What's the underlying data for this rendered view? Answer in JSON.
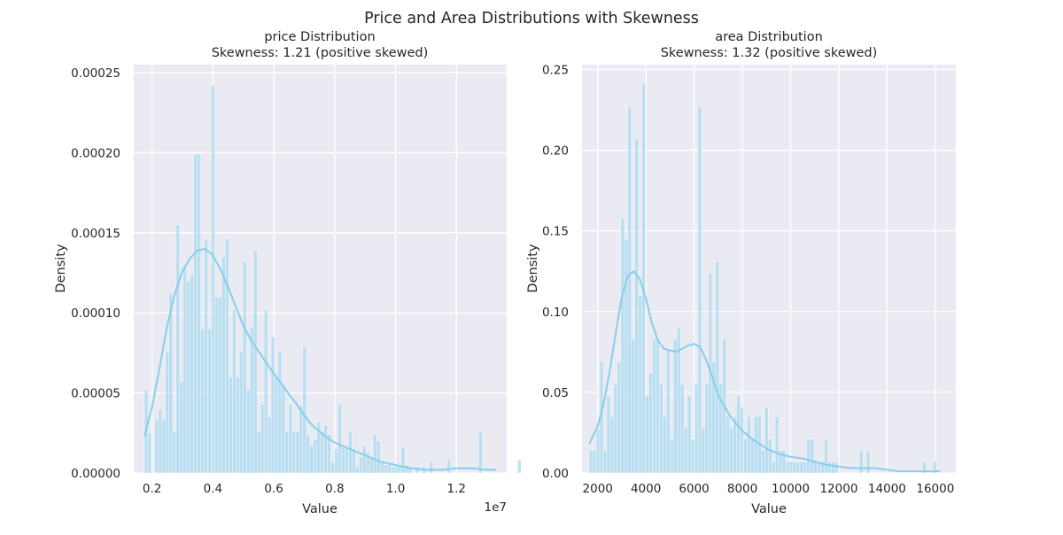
{
  "title": "Price and Area Distributions with Skewness",
  "chart_data": [
    {
      "type": "histogram",
      "title": "price Distribution",
      "subtitle": "Skewness: 1.21 (positive skewed)",
      "xlabel": "Value",
      "ylabel": "Density",
      "x_offset_label": "1e7",
      "xlim": [
        1400000,
        13650000
      ],
      "ylim": [
        0,
        0.000255
      ],
      "xticks": [
        2000000,
        4000000,
        6000000,
        8000000,
        10000000,
        12000000
      ],
      "xtick_labels": [
        "0.2",
        "0.4",
        "0.6",
        "0.8",
        "1.0",
        "1.2"
      ],
      "yticks": [
        0,
        5e-05,
        0.0001,
        0.00015,
        0.0002,
        0.00025
      ],
      "ytick_labels": [
        "0.00000",
        "0.00005",
        "0.00010",
        "0.00015",
        "0.00020",
        "0.00025"
      ],
      "bin_start": 1750000,
      "bin_width": 115600,
      "values": [
        5.2e-05,
        2.5e-05,
        0,
        3.4e-05,
        4e-05,
        3.4e-05,
        7.6e-05,
        0.000112,
        2.6e-05,
        0.000155,
        5.7e-05,
        0.00013,
        0.00012,
        0.000124,
        0.000199,
        0.000199,
        9e-05,
        0.000146,
        9e-05,
        0.000242,
        0.00011,
        0.00011,
        0.000135,
        0.000146,
        6e-05,
        0.000102,
        6e-05,
        7.6e-05,
        0.000132,
        5.2e-05,
        9.1e-05,
        0.000139,
        2.6e-05,
        4.3e-05,
        0.000102,
        3.5e-05,
        8.5e-05,
        6e-05,
        7.6e-05,
        5.5e-05,
        2.6e-05,
        4.3e-05,
        2.6e-05,
        2.6e-05,
        4.2e-05,
        7.9e-05,
        2.4e-05,
        1.7e-05,
        2.1e-05,
        3.2e-05,
        2.6e-05,
        3e-05,
        2.4e-05,
        7e-06,
        1.5e-05,
        4.3e-05,
        1.6e-05,
        1.6e-05,
        2.6e-05,
        1.5e-05,
        4e-06,
        1e-05,
        1.7e-05,
        1.3e-05,
        9e-06,
        2.4e-05,
        2e-05,
        7e-06,
        5e-06,
        6e-06,
        4e-06,
        4e-06,
        5e-06,
        1.6e-05,
        5e-06,
        4e-06,
        0,
        4e-06,
        0,
        4e-06,
        0,
        7e-06,
        0,
        0,
        0,
        0,
        8e-06,
        0,
        0,
        0,
        0,
        0,
        0,
        0,
        0,
        2.6e-05,
        0,
        0,
        0,
        0,
        0,
        0,
        0,
        0,
        0,
        0,
        8e-06
      ],
      "kde": {
        "x": [
          1750000,
          2000000,
          2250000,
          2500000,
          2750000,
          3000000,
          3250000,
          3500000,
          3750000,
          4000000,
          4250000,
          4500000,
          4750000,
          5000000,
          5250000,
          5500000,
          5750000,
          6000000,
          6250000,
          6500000,
          6750000,
          7000000,
          7250000,
          7500000,
          7750000,
          8000000,
          8250000,
          8500000,
          8750000,
          9000000,
          9250000,
          9500000,
          9750000,
          10000000,
          10500000,
          11000000,
          11500000,
          12000000,
          12500000,
          13000000,
          13300000
        ],
        "y": [
          2.3e-05,
          4.1e-05,
          6.6e-05,
          9.2e-05,
          0.000112,
          0.000126,
          0.000134,
          0.000139,
          0.00014,
          0.000136,
          0.000127,
          0.000116,
          0.000104,
          9.2e-05,
          8.3e-05,
          7.6e-05,
          6.9e-05,
          6.2e-05,
          5.6e-05,
          4.9e-05,
          4.3e-05,
          3.6e-05,
          3e-05,
          2.6e-05,
          2.2e-05,
          1.9e-05,
          1.7e-05,
          1.5e-05,
          1.3e-05,
          1.1e-05,
          9e-06,
          7e-06,
          6e-06,
          5e-06,
          3e-06,
          2e-06,
          2e-06,
          3e-06,
          3e-06,
          2e-06,
          2e-06
        ]
      }
    },
    {
      "type": "histogram",
      "title": "area Distribution",
      "subtitle": "Skewness: 1.32 (positive skewed)",
      "xlabel": "Value",
      "ylabel": "Density",
      "xlim": [
        1350,
        16850
      ],
      "ylim": [
        0,
        0.253
      ],
      "xticks": [
        2000,
        4000,
        6000,
        8000,
        10000,
        12000,
        14000,
        16000
      ],
      "xtick_labels": [
        "2000",
        "4000",
        "6000",
        "8000",
        "10000",
        "12000",
        "14000",
        "16000"
      ],
      "yticks": [
        0,
        0.05,
        0.1,
        0.15,
        0.2,
        0.25
      ],
      "ytick_labels": [
        "0.00",
        "0.05",
        "0.10",
        "0.15",
        "0.20",
        "0.25"
      ],
      "bin_start": 1650,
      "bin_width": 145.5,
      "values": [
        0.014,
        0.014,
        0.027,
        0.069,
        0.014,
        0.048,
        0.035,
        0.055,
        0.069,
        0.158,
        0.145,
        0.227,
        0.083,
        0.207,
        0.11,
        0.241,
        0.048,
        0.062,
        0.083,
        0.083,
        0.055,
        0.035,
        0.076,
        0.021,
        0.083,
        0.09,
        0.055,
        0.028,
        0.048,
        0.021,
        0.055,
        0.227,
        0.028,
        0.055,
        0.124,
        0.069,
        0.131,
        0.055,
        0.083,
        0.035,
        0.028,
        0.035,
        0.048,
        0.041,
        0.021,
        0.035,
        0.021,
        0.035,
        0.035,
        0.014,
        0.041,
        0.021,
        0.007,
        0.035,
        0.014,
        0.014,
        0.007,
        0.007,
        0.007,
        0.007,
        0.007,
        0.007,
        0.021,
        0.021,
        0.007,
        0.007,
        0.007,
        0.021,
        0.007,
        0.007,
        0.007,
        0,
        0,
        0,
        0,
        0,
        0,
        0.014,
        0,
        0.014,
        0,
        0,
        0,
        0,
        0,
        0,
        0,
        0,
        0,
        0,
        0,
        0,
        0,
        0,
        0,
        0.007,
        0,
        0,
        0.007
      ],
      "kde": {
        "x": [
          1650,
          2000,
          2250,
          2500,
          2750,
          3000,
          3250,
          3500,
          3750,
          4000,
          4250,
          4500,
          4750,
          5000,
          5250,
          5500,
          5750,
          6000,
          6250,
          6500,
          6750,
          7000,
          7500,
          8000,
          8500,
          9000,
          9500,
          10000,
          10500,
          11000,
          11500,
          12000,
          12500,
          13000,
          13500,
          14000,
          14500,
          15000,
          15500,
          16000,
          16200
        ],
        "y": [
          0.018,
          0.029,
          0.043,
          0.063,
          0.087,
          0.109,
          0.122,
          0.125,
          0.12,
          0.108,
          0.093,
          0.082,
          0.077,
          0.076,
          0.075,
          0.077,
          0.079,
          0.08,
          0.078,
          0.07,
          0.06,
          0.048,
          0.035,
          0.026,
          0.02,
          0.015,
          0.012,
          0.01,
          0.009,
          0.007,
          0.005,
          0.004,
          0.003,
          0.003,
          0.003,
          0.002,
          0.001,
          0.001,
          0.001,
          0.001,
          0.001
        ]
      }
    }
  ]
}
